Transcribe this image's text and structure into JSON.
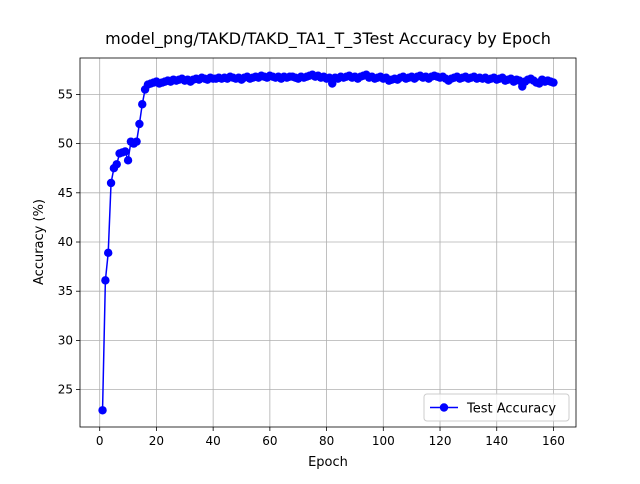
{
  "chart_data": {
    "type": "line",
    "title": "model_png/TAKD/TAKD_TA1_T_3Test Accuracy by Epoch",
    "x_label": "Epoch",
    "y_label": "Accuracy (%)",
    "x": [
      1,
      2,
      3,
      4,
      5,
      6,
      7,
      8,
      9,
      10,
      11,
      12,
      13,
      14,
      15,
      16,
      17,
      18,
      19,
      20,
      21,
      22,
      23,
      24,
      25,
      26,
      27,
      28,
      29,
      30,
      31,
      32,
      33,
      34,
      35,
      36,
      37,
      38,
      39,
      40,
      41,
      42,
      43,
      44,
      45,
      46,
      47,
      48,
      49,
      50,
      51,
      52,
      53,
      54,
      55,
      56,
      57,
      58,
      59,
      60,
      61,
      62,
      63,
      64,
      65,
      66,
      67,
      68,
      69,
      70,
      71,
      72,
      73,
      74,
      75,
      76,
      77,
      78,
      79,
      80,
      81,
      82,
      83,
      84,
      85,
      86,
      87,
      88,
      89,
      90,
      91,
      92,
      93,
      94,
      95,
      96,
      97,
      98,
      99,
      100,
      101,
      102,
      103,
      104,
      105,
      106,
      107,
      108,
      109,
      110,
      111,
      112,
      113,
      114,
      115,
      116,
      117,
      118,
      119,
      120,
      121,
      122,
      123,
      124,
      125,
      126,
      127,
      128,
      129,
      130,
      131,
      132,
      133,
      134,
      135,
      136,
      137,
      138,
      139,
      140,
      141,
      142,
      143,
      144,
      145,
      146,
      147,
      148,
      149,
      150,
      151,
      152,
      153,
      154,
      155,
      156,
      157,
      158,
      159,
      160
    ],
    "series": [
      {
        "name": "Test Accuracy",
        "color": "#0000ff",
        "values": [
          22.9,
          36.1,
          38.9,
          46.0,
          47.5,
          47.9,
          49.0,
          49.1,
          49.2,
          48.3,
          50.2,
          50.0,
          50.2,
          52.0,
          54.0,
          55.5,
          56.0,
          56.1,
          56.2,
          56.3,
          56.1,
          56.2,
          56.3,
          56.4,
          56.3,
          56.5,
          56.4,
          56.5,
          56.6,
          56.4,
          56.5,
          56.3,
          56.5,
          56.6,
          56.5,
          56.7,
          56.6,
          56.5,
          56.7,
          56.6,
          56.6,
          56.7,
          56.6,
          56.7,
          56.6,
          56.8,
          56.7,
          56.6,
          56.7,
          56.5,
          56.7,
          56.8,
          56.6,
          56.7,
          56.8,
          56.7,
          56.9,
          56.8,
          56.7,
          56.9,
          56.8,
          56.7,
          56.8,
          56.6,
          56.8,
          56.7,
          56.8,
          56.8,
          56.7,
          56.6,
          56.8,
          56.7,
          56.8,
          56.9,
          57.0,
          56.8,
          56.9,
          56.7,
          56.8,
          56.6,
          56.7,
          56.1,
          56.7,
          56.6,
          56.8,
          56.7,
          56.8,
          56.9,
          56.7,
          56.8,
          56.6,
          56.8,
          56.9,
          57.0,
          56.7,
          56.8,
          56.6,
          56.7,
          56.8,
          56.6,
          56.7,
          56.4,
          56.5,
          56.6,
          56.5,
          56.7,
          56.8,
          56.6,
          56.7,
          56.8,
          56.6,
          56.8,
          56.9,
          56.7,
          56.8,
          56.6,
          56.8,
          56.9,
          56.8,
          56.7,
          56.8,
          56.6,
          56.4,
          56.6,
          56.7,
          56.8,
          56.6,
          56.7,
          56.8,
          56.6,
          56.7,
          56.8,
          56.6,
          56.7,
          56.6,
          56.7,
          56.5,
          56.6,
          56.7,
          56.5,
          56.6,
          56.7,
          56.4,
          56.5,
          56.6,
          56.3,
          56.5,
          56.4,
          55.8,
          56.3,
          56.5,
          56.6,
          56.4,
          56.2,
          56.1,
          56.5,
          56.3,
          56.4,
          56.3,
          56.2
        ]
      }
    ],
    "xlim": [
      -6.95,
      167.95
    ],
    "ylim": [
      21.2,
      58.7
    ],
    "xticks": [
      0,
      20,
      40,
      60,
      80,
      100,
      120,
      140,
      160
    ],
    "yticks": [
      25,
      30,
      35,
      40,
      45,
      50,
      55
    ],
    "grid": true,
    "legend": "lower right"
  }
}
